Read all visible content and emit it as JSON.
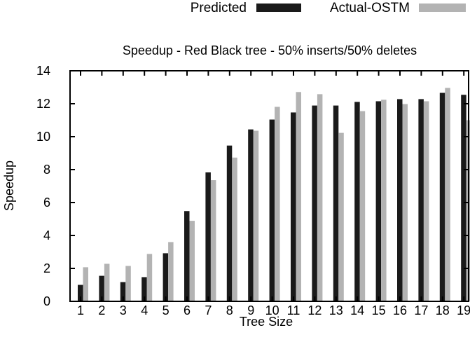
{
  "chart_data": {
    "type": "bar",
    "title": "Speedup - Red Black tree - 50% inserts/50% deletes",
    "xlabel": "Tree Size",
    "ylabel": "Speedup",
    "ylim": [
      0,
      14
    ],
    "yticks": [
      0,
      2,
      4,
      6,
      8,
      10,
      12,
      14
    ],
    "categories": [
      "1",
      "2",
      "3",
      "4",
      "5",
      "6",
      "7",
      "8",
      "9",
      "10",
      "11",
      "12",
      "13",
      "14",
      "15",
      "16",
      "17",
      "18",
      "19"
    ],
    "legend_position": "top",
    "grid": false,
    "series": [
      {
        "name": "Predicted",
        "color": "#1a1a1a",
        "values": [
          1.0,
          1.55,
          1.17,
          1.47,
          2.92,
          5.48,
          7.83,
          9.46,
          10.44,
          11.04,
          11.47,
          11.89,
          11.89,
          12.11,
          12.15,
          12.28,
          12.28,
          12.66,
          12.54
        ]
      },
      {
        "name": "Actual-OSTM",
        "color": "#b3b3b3",
        "values": [
          2.07,
          2.28,
          2.15,
          2.88,
          3.6,
          4.89,
          7.36,
          8.73,
          10.36,
          11.81,
          12.71,
          12.58,
          10.23,
          11.55,
          12.24,
          11.98,
          12.15,
          12.96,
          11.0
        ]
      }
    ]
  }
}
